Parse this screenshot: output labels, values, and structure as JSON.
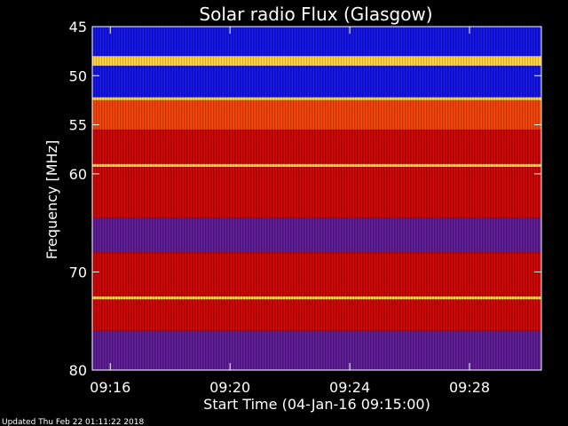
{
  "chart_data": {
    "type": "heatmap",
    "title": "Solar radio Flux (Glasgow)",
    "xlabel": "Start Time (04-Jan-16 09:15:00)",
    "ylabel": "Frequency [MHz]",
    "x_range_minutes": [
      0.4,
      15.4
    ],
    "y_range_mhz": [
      45,
      80
    ],
    "x_ticks": [
      {
        "label": "09:16",
        "minutes": 1
      },
      {
        "label": "09:20",
        "minutes": 5
      },
      {
        "label": "09:24",
        "minutes": 9
      },
      {
        "label": "09:28",
        "minutes": 13
      }
    ],
    "y_ticks": [
      {
        "label": "45",
        "mhz": 45
      },
      {
        "label": "50",
        "mhz": 50
      },
      {
        "label": "55",
        "mhz": 55
      },
      {
        "label": "60",
        "mhz": 60
      },
      {
        "label": "70",
        "mhz": 70
      },
      {
        "label": "80",
        "mhz": 80
      }
    ],
    "bands": [
      {
        "from": 45.0,
        "to": 48.0,
        "level": "blue"
      },
      {
        "from": 48.0,
        "to": 49.0,
        "level": "yellow"
      },
      {
        "from": 49.0,
        "to": 52.2,
        "level": "blue"
      },
      {
        "from": 52.2,
        "to": 52.5,
        "level": "yellow"
      },
      {
        "from": 52.5,
        "to": 55.5,
        "level": "orange"
      },
      {
        "from": 55.5,
        "to": 59.0,
        "level": "red"
      },
      {
        "from": 59.0,
        "to": 59.3,
        "level": "yellow"
      },
      {
        "from": 59.3,
        "to": 64.5,
        "level": "red"
      },
      {
        "from": 64.5,
        "to": 68.0,
        "level": "purple"
      },
      {
        "from": 68.0,
        "to": 72.5,
        "level": "red"
      },
      {
        "from": 72.5,
        "to": 72.8,
        "level": "yellow"
      },
      {
        "from": 72.8,
        "to": 76.0,
        "level": "red"
      },
      {
        "from": 76.0,
        "to": 80.0,
        "level": "purple"
      }
    ],
    "level_colors": {
      "blue": "#1010e0",
      "purple": "#5a1890",
      "red": "#c80000",
      "orange": "#f04000",
      "yellow": "#ffd040"
    },
    "grid": false
  },
  "footer": {
    "updated": "Updated Thu Feb 22 01:11:22 2018"
  }
}
